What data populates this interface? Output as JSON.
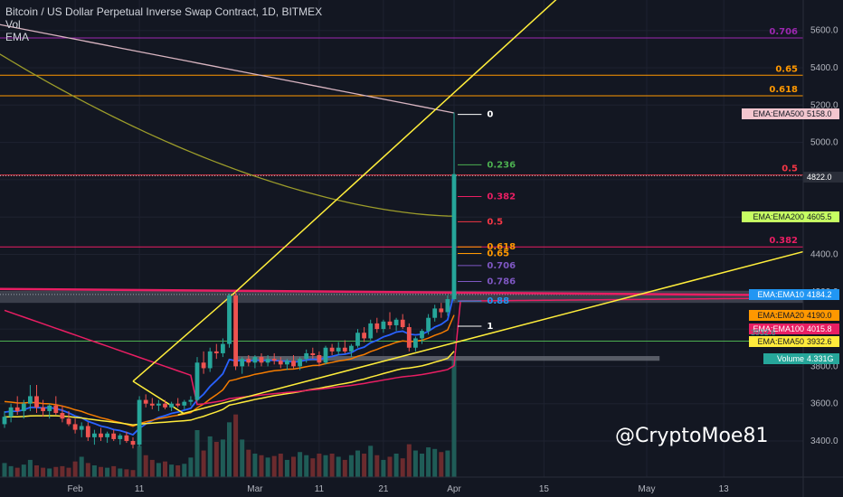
{
  "header": {
    "title": "Bitcoin / US Dollar Perpetual Inverse Swap Contract, 1D, BITMEX",
    "indicator_vol": "Vol",
    "indicator_ema": "EMA"
  },
  "watermark": "@CryptoMoe81",
  "colors": {
    "background": "#131722",
    "up": "#26a69a",
    "down": "#ef5350",
    "ema10": "#2962ff",
    "ema20": "#f57c00",
    "ema50": "#ffeb3b",
    "ema100": "#e91e63",
    "ema200": "#9c9c2a",
    "ema500": "#d8b4c0",
    "trendline": "#ffee3b"
  },
  "chart_data": {
    "type": "candlestick",
    "y_axis": {
      "ticks": [
        3400,
        3600,
        3800,
        4000,
        4200,
        4400,
        4600,
        4800,
        5000,
        5200,
        5400,
        5600
      ],
      "tick_labels": [
        "3400.0",
        "3600.0",
        "3800.0",
        "4000.0",
        "4200.0",
        "4400.0",
        "4600.0",
        "4800.0",
        "5000.0",
        "5200.0",
        "5400.0",
        "5600.0"
      ]
    },
    "x_axis": {
      "ticks": [
        {
          "label": "Feb",
          "bar": 11
        },
        {
          "label": "11",
          "bar": 21
        },
        {
          "label": "Mar",
          "bar": 39
        },
        {
          "label": "11",
          "bar": 49
        },
        {
          "label": "21",
          "bar": 59
        },
        {
          "label": "Apr",
          "bar": 70
        },
        {
          "label": "15",
          "bar": 84
        },
        {
          "label": "May",
          "bar": 100
        },
        {
          "label": "13",
          "bar": 112
        }
      ]
    },
    "candles": [
      [
        3490,
        3560,
        3470,
        3530
      ],
      [
        3530,
        3600,
        3500,
        3580
      ],
      [
        3580,
        3640,
        3540,
        3560
      ],
      [
        3560,
        3620,
        3520,
        3600
      ],
      [
        3600,
        3700,
        3560,
        3640
      ],
      [
        3640,
        3700,
        3550,
        3580
      ],
      [
        3580,
        3620,
        3530,
        3560
      ],
      [
        3560,
        3600,
        3520,
        3590
      ],
      [
        3590,
        3640,
        3540,
        3550
      ],
      [
        3550,
        3590,
        3500,
        3520
      ],
      [
        3520,
        3560,
        3480,
        3490
      ],
      [
        3490,
        3520,
        3440,
        3460
      ],
      [
        3460,
        3500,
        3420,
        3480
      ],
      [
        3480,
        3500,
        3400,
        3420
      ],
      [
        3420,
        3460,
        3380,
        3440
      ],
      [
        3440,
        3470,
        3400,
        3420
      ],
      [
        3420,
        3450,
        3390,
        3440
      ],
      [
        3440,
        3460,
        3400,
        3410
      ],
      [
        3410,
        3440,
        3380,
        3430
      ],
      [
        3430,
        3450,
        3390,
        3400
      ],
      [
        3400,
        3420,
        3360,
        3380
      ],
      [
        3380,
        3640,
        3370,
        3620
      ],
      [
        3620,
        3650,
        3580,
        3600
      ],
      [
        3600,
        3630,
        3570,
        3590
      ],
      [
        3590,
        3620,
        3560,
        3600
      ],
      [
        3600,
        3620,
        3570,
        3580
      ],
      [
        3580,
        3610,
        3560,
        3600
      ],
      [
        3600,
        3630,
        3580,
        3590
      ],
      [
        3590,
        3620,
        3570,
        3610
      ],
      [
        3610,
        3640,
        3590,
        3620
      ],
      [
        3620,
        3850,
        3610,
        3820
      ],
      [
        3820,
        3880,
        3760,
        3790
      ],
      [
        3790,
        3900,
        3770,
        3880
      ],
      [
        3880,
        3920,
        3840,
        3870
      ],
      [
        3870,
        3950,
        3850,
        3920
      ],
      [
        3920,
        4190,
        3900,
        4180
      ],
      [
        4180,
        4200,
        3780,
        3800
      ],
      [
        3800,
        3850,
        3760,
        3840
      ],
      [
        3840,
        3860,
        3800,
        3820
      ],
      [
        3820,
        3860,
        3790,
        3850
      ],
      [
        3850,
        3870,
        3800,
        3820
      ],
      [
        3820,
        3860,
        3800,
        3840
      ],
      [
        3840,
        3870,
        3810,
        3830
      ],
      [
        3830,
        3850,
        3790,
        3810
      ],
      [
        3810,
        3840,
        3780,
        3830
      ],
      [
        3830,
        3860,
        3790,
        3800
      ],
      [
        3800,
        3850,
        3780,
        3840
      ],
      [
        3840,
        3890,
        3820,
        3870
      ],
      [
        3870,
        3900,
        3840,
        3860
      ],
      [
        3860,
        3880,
        3800,
        3820
      ],
      [
        3820,
        3910,
        3810,
        3900
      ],
      [
        3900,
        3920,
        3860,
        3880
      ],
      [
        3880,
        3930,
        3860,
        3900
      ],
      [
        3900,
        3940,
        3870,
        3880
      ],
      [
        3880,
        3920,
        3850,
        3910
      ],
      [
        3910,
        4000,
        3900,
        3980
      ],
      [
        3980,
        4010,
        3930,
        3950
      ],
      [
        3950,
        4050,
        3940,
        4030
      ],
      [
        4030,
        4060,
        3980,
        4000
      ],
      [
        4000,
        4050,
        3980,
        4040
      ],
      [
        4040,
        4090,
        4000,
        4020
      ],
      [
        4020,
        4060,
        3990,
        4050
      ],
      [
        4050,
        4080,
        4000,
        4010
      ],
      [
        4010,
        4030,
        3880,
        3900
      ],
      [
        3900,
        3960,
        3880,
        3950
      ],
      [
        3950,
        4000,
        3920,
        3990
      ],
      [
        3990,
        4080,
        3970,
        4060
      ],
      [
        4060,
        4130,
        4040,
        4110
      ],
      [
        4110,
        4140,
        4060,
        4090
      ],
      [
        4090,
        4180,
        4070,
        4160
      ],
      [
        4160,
        5160,
        4150,
        4830
      ]
    ],
    "volume_bars": [
      18,
      14,
      12,
      16,
      22,
      15,
      12,
      11,
      13,
      14,
      12,
      20,
      26,
      18,
      15,
      13,
      12,
      14,
      11,
      10,
      9,
      40,
      28,
      22,
      18,
      20,
      16,
      15,
      17,
      25,
      60,
      34,
      52,
      45,
      48,
      70,
      80,
      48,
      35,
      30,
      28,
      25,
      27,
      30,
      22,
      26,
      32,
      28,
      24,
      30,
      28,
      30,
      26,
      22,
      28,
      34,
      30,
      40,
      28,
      22,
      26,
      30,
      24,
      42,
      34,
      30,
      38,
      36,
      32,
      34,
      150
    ],
    "volume_ylim": [
      0,
      150
    ],
    "ema_lines": [
      {
        "name": "EMA:EMA10",
        "value_label": "4184.2"
      },
      {
        "name": "EMA:EMA20",
        "value_label": "4190.0"
      },
      {
        "name": "EMA:EMA50",
        "value_label": "3932.6"
      },
      {
        "name": "EMA:EMA100",
        "value_label": "4015.8"
      },
      {
        "name": "EMA:EMA200",
        "value_label": "4605.5"
      },
      {
        "name": "EMA:EMA500",
        "value_label": "5158.0"
      }
    ],
    "current_price_label": "4822.0",
    "volume_tag": {
      "name": "Volume",
      "value_label": "4.331G"
    },
    "hidden_tag_fragment": "3932.6",
    "fib_short": [
      {
        "label": "0",
        "price": 5150,
        "color": "#ffffff"
      },
      {
        "label": "0.236",
        "price": 4880,
        "color": "#4caf50"
      },
      {
        "label": "0.382",
        "price": 4710,
        "color": "#e91e63"
      },
      {
        "label": "0.5",
        "price": 4575,
        "color": "#f23645"
      },
      {
        "label": "0.618",
        "price": 4440,
        "color": "#ff9800"
      },
      {
        "label": "0.65",
        "price": 4405,
        "color": "#ff9800"
      },
      {
        "label": "0.706",
        "price": 4340,
        "color": "#7e57c2"
      },
      {
        "label": "0.786",
        "price": 4255,
        "color": "#7e57c2"
      },
      {
        "label": "0.88",
        "price": 4150,
        "color": "#2196f3"
      },
      {
        "label": "1",
        "price": 4015,
        "color": "#ffffff"
      }
    ],
    "fib_long": [
      {
        "label": "0.706",
        "price": 5560,
        "color": "#9c27b0"
      },
      {
        "label": "0.65",
        "price": 5360,
        "color": "#ff9800"
      },
      {
        "label": "0.618",
        "price": 5250,
        "color": "#ff9800"
      },
      {
        "label": "0.5",
        "price": 4825,
        "color": "#f23645"
      },
      {
        "label": "0.382",
        "price": 4440,
        "color": "#e91e63"
      }
    ],
    "green_line_price": 3935,
    "dotted_line_price": 4185
  }
}
